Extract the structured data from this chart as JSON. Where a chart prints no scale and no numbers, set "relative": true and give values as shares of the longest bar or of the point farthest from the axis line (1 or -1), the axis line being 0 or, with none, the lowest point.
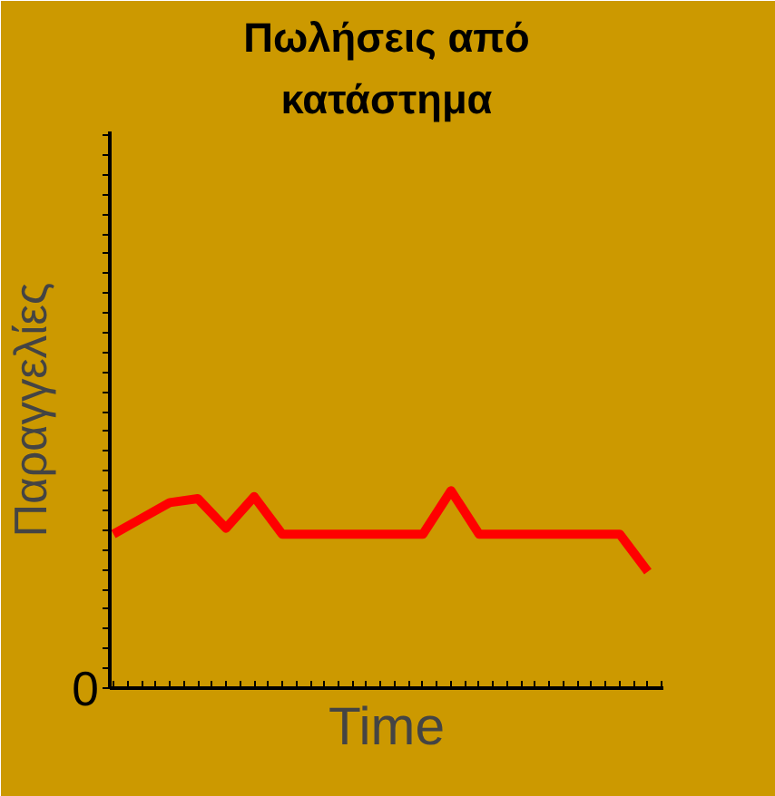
{
  "chart_data": {
    "type": "line",
    "title": "Πωλήσεις από κατάστημα",
    "ylabel": "Παραγγελίες",
    "xlabel": "Time",
    "relative": true,
    "annotations": [
      "0"
    ],
    "categories": [
      null,
      null,
      null,
      null,
      null,
      null,
      null,
      null,
      null,
      null,
      null,
      null,
      null,
      null,
      null,
      null,
      null,
      null,
      null,
      null
    ],
    "series": [
      {
        "color": "#ff0000",
        "values": [
          0.78,
          0.86,
          0.94,
          0.96,
          0.81,
          0.97,
          0.78,
          0.78,
          0.78,
          0.78,
          0.78,
          0.78,
          1,
          0.78,
          0.78,
          0.78,
          0.78,
          0.78,
          0.78,
          0.59
        ]
      }
    ],
    "marker": "none",
    "line_style": "solid"
  }
}
